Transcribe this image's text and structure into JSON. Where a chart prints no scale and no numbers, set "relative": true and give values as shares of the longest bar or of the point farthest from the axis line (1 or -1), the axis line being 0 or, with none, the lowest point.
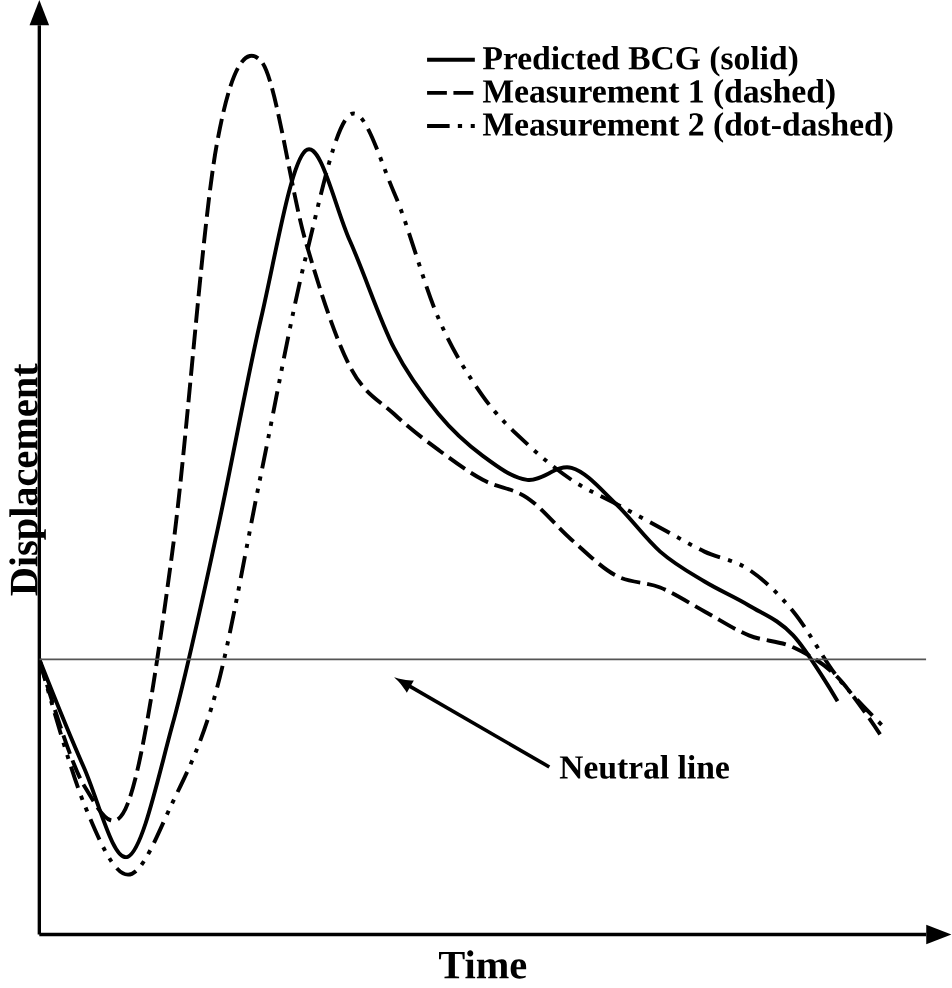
{
  "chart_data": {
    "type": "line",
    "relative": true,
    "xlabel": "Time",
    "ylabel": "Displacement",
    "categories": [
      null,
      null,
      null,
      null,
      null,
      null,
      null,
      null,
      null,
      null,
      null,
      null,
      null,
      null,
      null,
      null,
      null,
      null,
      null,
      null
    ],
    "series": [
      {
        "name": "Predicted BCG (solid)",
        "color": "#000000",
        "line_style": "solid",
        "values": [
          0,
          -0.18,
          -0.33,
          -0.11,
          0.21,
          0.57,
          0.85,
          0.7,
          0.52,
          0.41,
          0.34,
          0.3,
          0.32,
          0.26,
          0.18,
          0.13,
          0.09,
          0.04,
          -0.07,
          null
        ]
      },
      {
        "name": "Measurement 1 (dashed)",
        "color": "#000000",
        "line_style": "dashed",
        "values": [
          0,
          -0.21,
          -0.24,
          0.18,
          0.86,
          1.0,
          0.7,
          0.49,
          0.41,
          0.35,
          0.3,
          0.27,
          0.2,
          0.14,
          0.12,
          0.08,
          0.04,
          0.02,
          -0.03,
          -0.13
        ]
      },
      {
        "name": "Measurement 2 (dot-dashed)",
        "color": "#000000",
        "line_style": "dashdotdot",
        "values": [
          0,
          -0.24,
          -0.36,
          -0.24,
          -0.05,
          0.31,
          0.67,
          0.91,
          0.78,
          0.57,
          0.44,
          0.36,
          0.3,
          0.26,
          0.22,
          0.18,
          0.15,
          0.08,
          -0.03,
          -0.11
        ]
      }
    ],
    "ref_lines": [
      {
        "axis": "y",
        "value": 0,
        "label": "Neutral line",
        "color": "#555555"
      }
    ],
    "legend": "top right",
    "marker": "none"
  }
}
